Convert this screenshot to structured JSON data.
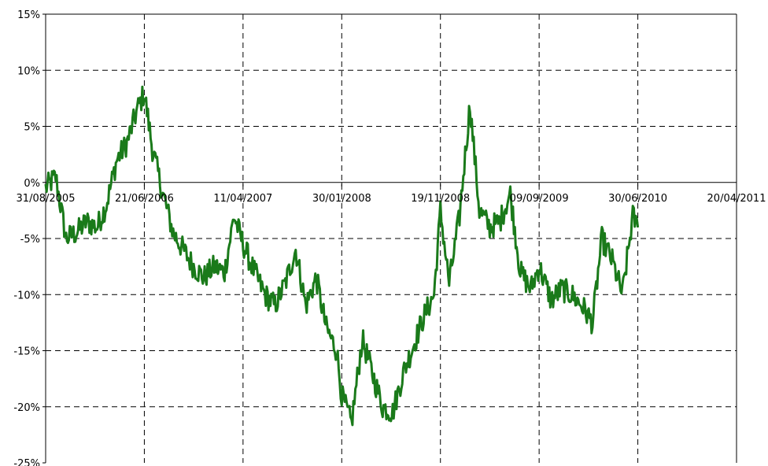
{
  "chart_data": {
    "type": "line",
    "title": "",
    "xlabel": "",
    "ylabel": "",
    "x_tick_labels": [
      "31/08/2005",
      "21/06/2006",
      "11/04/2007",
      "30/01/2008",
      "19/11/2008",
      "09/09/2009",
      "30/06/2010",
      "20/04/2011"
    ],
    "y_tick_labels": [
      "15%",
      "10%",
      "5%",
      "0%",
      "-5%",
      "-10%",
      "-15%",
      "-20%",
      "-25%"
    ],
    "ylim": [
      -25,
      15
    ],
    "xlim": [
      "2005-08-31",
      "2011-04-20"
    ],
    "grid": true,
    "line_color": "#1a7a1a",
    "series": [
      {
        "x": [
          "2005-08-31",
          "2005-09-30",
          "2005-10-31",
          "2005-11-30",
          "2005-12-31",
          "2006-01-31",
          "2006-02-28",
          "2006-03-31",
          "2006-04-30",
          "2006-05-31",
          "2006-06-21",
          "2006-07-15",
          "2006-08-15",
          "2006-09-15",
          "2006-10-15",
          "2006-11-15",
          "2006-12-15",
          "2007-01-15",
          "2007-02-15",
          "2007-03-15",
          "2007-04-11",
          "2007-05-15",
          "2007-06-15",
          "2007-07-15",
          "2007-08-15",
          "2007-09-15",
          "2007-10-15",
          "2007-11-15",
          "2007-12-15",
          "2008-01-15",
          "2008-01-30",
          "2008-02-28",
          "2008-03-31",
          "2008-04-30",
          "2008-05-31",
          "2008-06-30",
          "2008-07-31",
          "2008-08-31",
          "2008-09-30",
          "2008-10-31",
          "2008-11-19",
          "2008-12-15",
          "2009-01-15",
          "2009-02-15",
          "2009-03-15",
          "2009-04-15",
          "2009-05-15",
          "2009-06-15",
          "2009-07-15",
          "2009-08-15",
          "2009-09-09",
          "2009-10-15",
          "2009-11-15",
          "2009-12-15",
          "2010-01-15",
          "2010-02-15",
          "2010-03-15",
          "2010-04-15",
          "2010-05-15",
          "2010-06-15",
          "2010-06-30"
        ],
        "values": [
          -0.5,
          0.5,
          -5.0,
          -4.5,
          -3.5,
          -4.0,
          -2.0,
          2.0,
          3.5,
          6.5,
          8.0,
          3.0,
          -1.0,
          -4.5,
          -6.0,
          -7.5,
          -8.5,
          -7.5,
          -8.0,
          -3.0,
          -5.5,
          -8.0,
          -10.0,
          -11.0,
          -9.0,
          -6.0,
          -11.0,
          -8.5,
          -13.0,
          -15.0,
          -19.0,
          -21.5,
          -14.0,
          -17.0,
          -20.0,
          -20.5,
          -17.0,
          -14.5,
          -12.0,
          -10.0,
          -2.5,
          -9.0,
          -3.0,
          7.0,
          -2.5,
          -4.0,
          -3.5,
          -1.0,
          -8.0,
          -9.5,
          -7.5,
          -10.5,
          -9.5,
          -10.0,
          -11.0,
          -12.5,
          -5.0,
          -7.0,
          -10.0,
          -3.0,
          -4.0
        ]
      }
    ]
  }
}
